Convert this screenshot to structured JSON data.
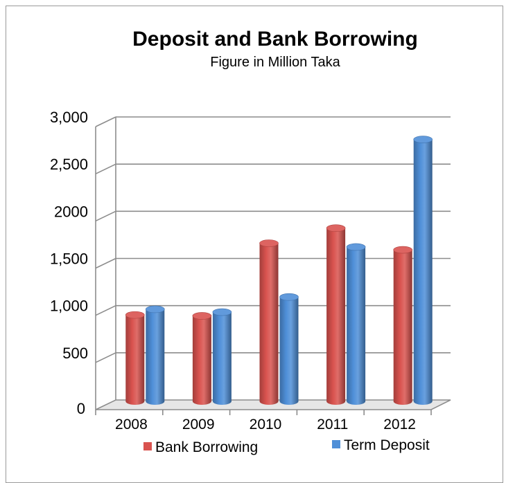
{
  "chart_data": {
    "type": "bar",
    "title": "Deposit and Bank Borrowing",
    "subtitle": "Figure in Million Taka",
    "categories": [
      "2008",
      "2009",
      "2010",
      "2011",
      "2012"
    ],
    "series": [
      {
        "name": "Bank Borrowing",
        "values": [
          960,
          950,
          1720,
          1880,
          1650
        ],
        "color": "#d9534f"
      },
      {
        "name": "Term Deposit",
        "values": [
          1020,
          990,
          1150,
          1680,
          2820
        ],
        "color": "#4f8fd8"
      }
    ],
    "yticks": [
      {
        "value": 0,
        "label": "0"
      },
      {
        "value": 500,
        "label": "500"
      },
      {
        "value": 1000,
        "label": "1,000"
      },
      {
        "value": 1500,
        "label": "1,500"
      },
      {
        "value": 2000,
        "label": "2000"
      },
      {
        "value": 2500,
        "label": "2,500"
      },
      {
        "value": 3000,
        "label": "3,000"
      }
    ],
    "ylim": [
      0,
      3000
    ],
    "grid": true,
    "legend_position": "bottom"
  }
}
